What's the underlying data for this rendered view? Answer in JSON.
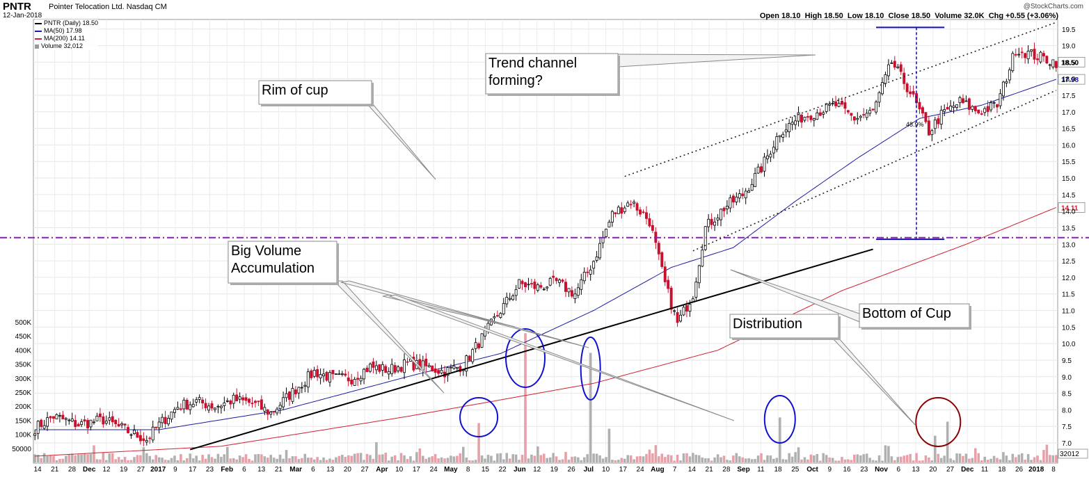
{
  "header": {
    "ticker": "PNTR",
    "company": "Pointer Telocation Ltd. Nasdaq CM",
    "date": "12-Jan-2018",
    "credit": "@StockCharts.com",
    "ohlc": {
      "open_label": "Open",
      "open": "18.10",
      "high_label": "High",
      "high": "18.50",
      "low_label": "Low",
      "low": "18.10",
      "close_label": "Close",
      "close": "18.50",
      "volume_label": "Volume",
      "volume": "32.0K",
      "chg_label": "Chg",
      "chg": "+0.55 (+3.06%)"
    }
  },
  "legend": {
    "price": "PNTR (Daily) 18.50",
    "ma50": "MA(50) 17.98",
    "ma200": "MA(200) 14.11",
    "volume": "Volume 32,012"
  },
  "colors": {
    "up": "#000000",
    "down": "#c8102e",
    "ma50": "#1a1aa0",
    "ma200": "#d0202f",
    "rim_line": "#8a1ac8",
    "volume_up": "#b0b0b0",
    "volume_down": "#e8a0a8",
    "circle_blue": "#1010d0",
    "circle_red": "#8b0000",
    "measure_line": "#1010b0"
  },
  "chart_data": {
    "type": "candlestick",
    "ylim": [
      7.0,
      19.6
    ],
    "y_ticks": [
      "7.0",
      "7.5",
      "8.0",
      "8.5",
      "9.0",
      "9.5",
      "10.0",
      "10.5",
      "11.0",
      "11.5",
      "12.0",
      "12.5",
      "13.0",
      "13.5",
      "14.0",
      "14.5",
      "15.0",
      "15.5",
      "16.0",
      "16.5",
      "17.0",
      "17.5",
      "18.0",
      "18.5",
      "19.0",
      "19.5"
    ],
    "volume_ticks": [
      "50000",
      "100K",
      "150K",
      "200K",
      "250K",
      "300K",
      "350K",
      "400K",
      "450K",
      "500K"
    ],
    "x_labels": [
      "14",
      "21",
      "28",
      "Dec",
      "12",
      "19",
      "27",
      "2017",
      "9",
      "17",
      "23",
      "Feb",
      "6",
      "13",
      "21",
      "Mar",
      "6",
      "13",
      "20",
      "27",
      "Apr",
      "10",
      "17",
      "24",
      "May",
      "8",
      "15",
      "22",
      "Jun",
      "12",
      "19",
      "26",
      "Jul",
      "10",
      "17",
      "24",
      "Aug",
      "7",
      "14",
      "21",
      "28",
      "Sep",
      "11",
      "18",
      "25",
      "Oct",
      "9",
      "16",
      "23",
      "Nov",
      "6",
      "13",
      "20",
      "27",
      "Dec",
      "11",
      "18",
      "26",
      "2018",
      "8"
    ],
    "last_price_label": "18.50",
    "ma50_label": "17.98",
    "ma200_label": "14.11",
    "volume_label": "32012",
    "rim_level": 13.2,
    "measure_pct": "48.9%",
    "price_keypoints": [
      [
        0,
        7.45
      ],
      [
        6,
        7.8
      ],
      [
        14,
        7.55
      ],
      [
        22,
        7.7
      ],
      [
        30,
        7.35
      ],
      [
        36,
        7.1
      ],
      [
        40,
        7.55
      ],
      [
        46,
        8.1
      ],
      [
        52,
        8.25
      ],
      [
        58,
        8.1
      ],
      [
        64,
        8.3
      ],
      [
        70,
        8.2
      ],
      [
        76,
        7.9
      ],
      [
        82,
        8.45
      ],
      [
        90,
        9.15
      ],
      [
        96,
        8.95
      ],
      [
        102,
        8.95
      ],
      [
        108,
        9.3
      ],
      [
        114,
        9.2
      ],
      [
        120,
        9.4
      ],
      [
        126,
        9.3
      ],
      [
        132,
        9.15
      ],
      [
        138,
        9.35
      ],
      [
        145,
        10.3
      ],
      [
        150,
        11.0
      ],
      [
        156,
        11.8
      ],
      [
        162,
        11.7
      ],
      [
        168,
        11.85
      ],
      [
        174,
        11.5
      ],
      [
        180,
        12.5
      ],
      [
        186,
        13.9
      ],
      [
        192,
        14.3
      ],
      [
        198,
        13.7
      ],
      [
        203,
        11.8
      ],
      [
        207,
        10.6
      ],
      [
        212,
        11.5
      ],
      [
        216,
        13.5
      ],
      [
        222,
        14.1
      ],
      [
        228,
        14.5
      ],
      [
        234,
        15.3
      ],
      [
        240,
        16.4
      ],
      [
        246,
        16.8
      ],
      [
        252,
        17.0
      ],
      [
        258,
        17.2
      ],
      [
        264,
        16.8
      ],
      [
        270,
        17.0
      ],
      [
        276,
        18.5
      ],
      [
        282,
        17.6
      ],
      [
        288,
        16.4
      ],
      [
        292,
        16.9
      ],
      [
        298,
        17.3
      ],
      [
        304,
        17.0
      ],
      [
        310,
        17.2
      ],
      [
        316,
        18.9
      ],
      [
        322,
        18.7
      ],
      [
        329,
        18.5
      ]
    ],
    "ma50_keypoints": [
      [
        0,
        7.4
      ],
      [
        40,
        7.4
      ],
      [
        80,
        8.0
      ],
      [
        120,
        9.0
      ],
      [
        150,
        9.7
      ],
      [
        180,
        11.0
      ],
      [
        205,
        12.3
      ],
      [
        225,
        12.9
      ],
      [
        245,
        14.3
      ],
      [
        265,
        15.6
      ],
      [
        285,
        16.8
      ],
      [
        305,
        17.2
      ],
      [
        329,
        17.98
      ]
    ],
    "ma200_keypoints": [
      [
        0,
        6.6
      ],
      [
        60,
        6.9
      ],
      [
        120,
        7.8
      ],
      [
        180,
        8.8
      ],
      [
        220,
        9.8
      ],
      [
        260,
        11.6
      ],
      [
        300,
        13.0
      ],
      [
        329,
        14.11
      ]
    ],
    "support_line": {
      "from": [
        50,
        6.8
      ],
      "to": [
        270,
        12.85
      ]
    },
    "channel_upper": {
      "from": [
        190,
        15.05
      ],
      "to": [
        329,
        19.7
      ]
    },
    "channel_lower": {
      "from": [
        212,
        12.8
      ],
      "to": [
        329,
        17.65
      ]
    },
    "measure": {
      "x": 284,
      "top": 19.55,
      "bottom": 13.15,
      "x0": 271,
      "x1": 293
    },
    "annotations": [
      {
        "text": "Rim of cup"
      },
      {
        "text": "Trend channel forming?"
      },
      {
        "text": "Big Volume Accumulation"
      },
      {
        "text": "Bottom of Cup"
      },
      {
        "text": "Distribution"
      }
    ],
    "volume_spikes": [
      [
        143,
        140000
      ],
      [
        158,
        460000
      ],
      [
        179,
        390000
      ],
      [
        185,
        120000
      ],
      [
        240,
        160000
      ],
      [
        290,
        95000
      ],
      [
        294,
        145000
      ],
      [
        110,
        72000
      ]
    ]
  }
}
